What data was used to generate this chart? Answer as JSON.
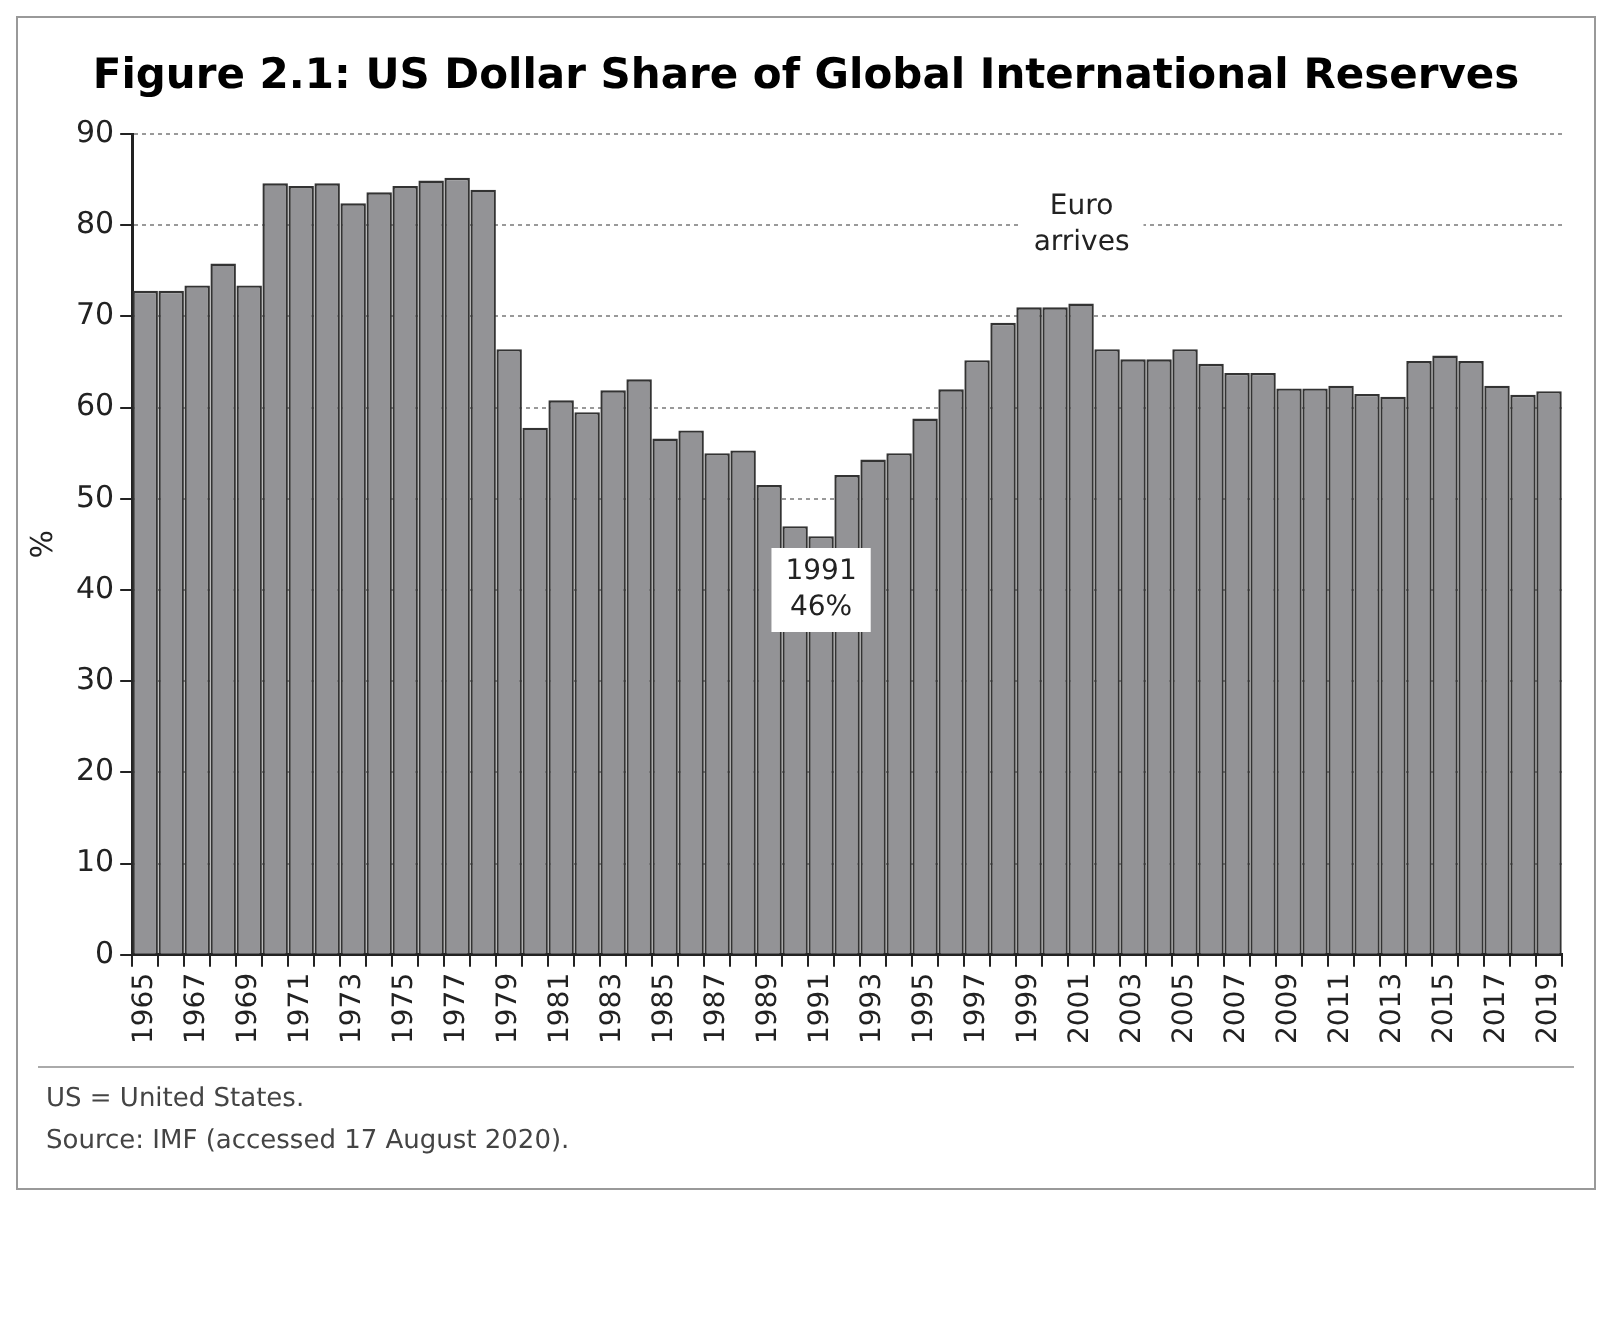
{
  "chart_data": {
    "type": "bar",
    "title": "Figure 2.1: US Dollar Share of Global International Reserves",
    "ylabel": "%",
    "categories": [
      "1965",
      null,
      "1967",
      null,
      "1969",
      null,
      "1971",
      null,
      "1973",
      null,
      "1975",
      null,
      "1977",
      null,
      "1979",
      null,
      "1981",
      null,
      "1983",
      null,
      "1985",
      null,
      "1987",
      null,
      "1989",
      null,
      "1991",
      null,
      "1993",
      null,
      "1995",
      null,
      "1997",
      null,
      "1999",
      null,
      "2001",
      null,
      "2003",
      null,
      "2005",
      null,
      "2007",
      null,
      "2009",
      null,
      "2011",
      null,
      "2013",
      null,
      "2015",
      null,
      "2017",
      null,
      "2019"
    ],
    "values": [
      72.8,
      72.8,
      73.4,
      75.8,
      73.4,
      84.6,
      84.3,
      84.6,
      82.4,
      83.6,
      84.3,
      84.9,
      85.2,
      83.9,
      66.4,
      57.8,
      60.8,
      59.5,
      61.9,
      63.1,
      56.6,
      57.5,
      55.0,
      55.3,
      51.5,
      47.0,
      45.9,
      52.6,
      54.3,
      55.0,
      58.8,
      62.0,
      65.2,
      69.3,
      71.0,
      71.0,
      71.4,
      66.4,
      65.3,
      65.3,
      66.4,
      64.8,
      63.8,
      63.8,
      62.1,
      62.1,
      62.4,
      61.5,
      61.2,
      65.1,
      65.7,
      65.1,
      62.4,
      61.4,
      61.8
    ],
    "color": "#939396",
    "ylim": [
      0,
      90
    ],
    "yticks": [
      0,
      10,
      20,
      30,
      40,
      50,
      60,
      70,
      80,
      90
    ],
    "grid": "y",
    "legend": false,
    "annotations": [
      "Euro\narrives",
      {
        "text": "1991\n46%",
        "x": "1991",
        "y": 40
      },
      "US = United States.",
      "Source: IMF (accessed 17 August 2020)."
    ]
  }
}
